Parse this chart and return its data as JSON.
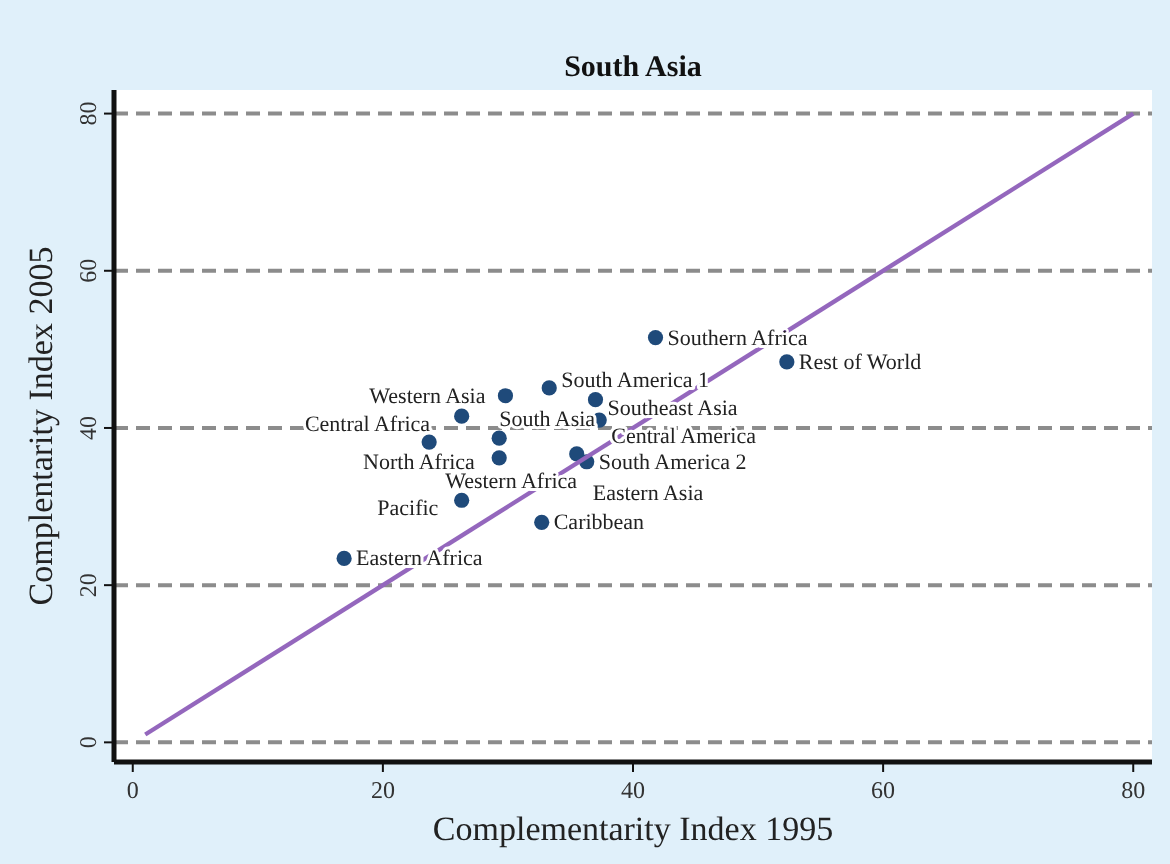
{
  "chart_data": {
    "type": "scatter",
    "title": "South Asia",
    "xlabel": "Complementarity Index 1995",
    "ylabel": "Complentarity Index 2005",
    "xlim": [
      -1.5,
      81.5
    ],
    "ylim": [
      -2.5,
      83
    ],
    "xticks": [
      0,
      20,
      40,
      60,
      80
    ],
    "yticks": [
      0,
      20,
      40,
      60,
      80
    ],
    "grid": "y",
    "marker": "circle",
    "series": [
      {
        "color": "#1f4a7a",
        "x": [
          41.8,
          52.3,
          33.3,
          29.8,
          37.0,
          26.3,
          37.3,
          29.3,
          23.7,
          29.3,
          35.5,
          36.3,
          26.3,
          32.7,
          16.9
        ],
        "values": [
          51.5,
          48.4,
          45.1,
          44.1,
          43.6,
          41.5,
          41.0,
          38.7,
          38.2,
          36.2,
          36.7,
          35.7,
          30.8,
          28.0,
          23.4
        ]
      },
      {
        "type": "line",
        "color": "#9467bd",
        "x": [
          1,
          80
        ],
        "values": [
          1,
          80
        ],
        "marker": "none"
      }
    ],
    "annotations": [
      {
        "text": "Southern Africa",
        "x": 41.8,
        "y": 51.5
      },
      {
        "text": "Rest of World",
        "x": 52.3,
        "y": 48.4
      },
      {
        "text": "South America 1",
        "x": 33.3,
        "y": 45.1
      },
      {
        "text": "Western Asia",
        "x": 29.8,
        "y": 44.1
      },
      {
        "text": "Southeast Asia",
        "x": 37.0,
        "y": 43.6
      },
      {
        "text": "Central Africa",
        "x": 26.3,
        "y": 41.5
      },
      {
        "text": "Central America",
        "x": 37.3,
        "y": 41.0
      },
      {
        "text": "North Africa",
        "x": 29.3,
        "y": 38.7
      },
      {
        "text": "Western Africa",
        "x": 23.7,
        "y": 38.2
      },
      {
        "text": "South Asia",
        "x": 29.3,
        "y": 36.2
      },
      {
        "text": "Eastern Asia",
        "x": 35.5,
        "y": 36.7
      },
      {
        "text": "South America 2",
        "x": 36.3,
        "y": 35.7
      },
      {
        "text": "Pacific",
        "x": 26.3,
        "y": 30.8
      },
      {
        "text": "Caribbean",
        "x": 32.7,
        "y": 28.0
      },
      {
        "text": "Eastern Africa",
        "x": 16.9,
        "y": 23.4
      }
    ]
  }
}
